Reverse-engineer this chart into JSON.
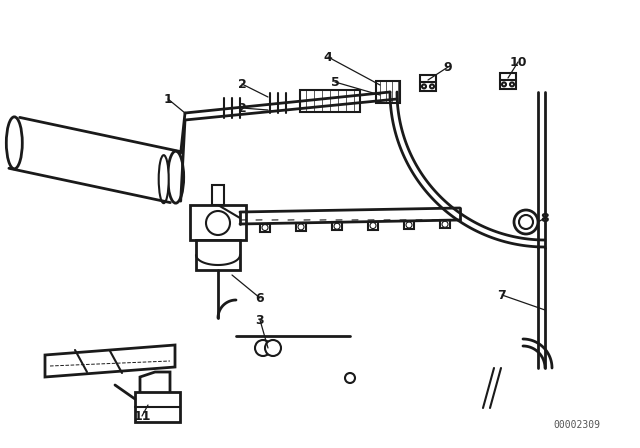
{
  "bg_color": "#ffffff",
  "line_color": "#1a1a1a",
  "diagram_id": "00002309",
  "fig_w": 6.4,
  "fig_h": 4.48,
  "dpi": 100
}
